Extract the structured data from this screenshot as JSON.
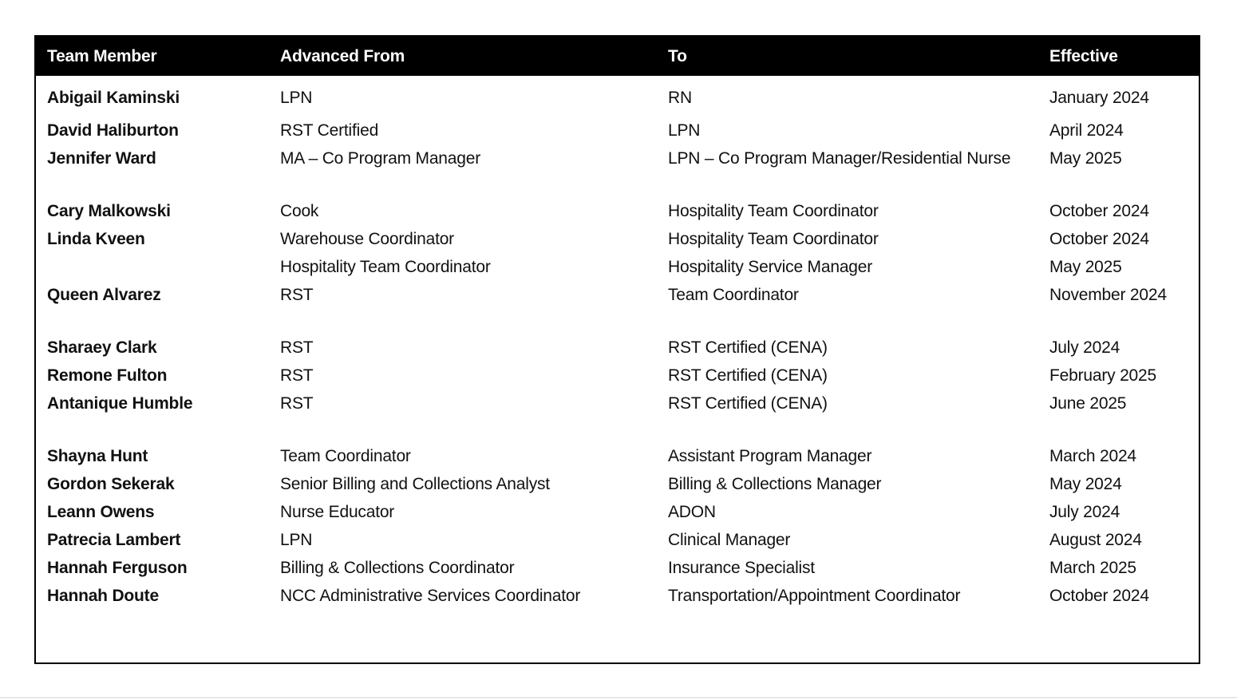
{
  "page": {
    "background_color": "#ffffff",
    "bottom_rule_color": "#e7e7e7"
  },
  "table": {
    "border_color": "#000000",
    "header": {
      "background_color": "#000000",
      "text_color": "#ffffff",
      "columns": [
        "Team Member",
        "Advanced From",
        "To",
        "Effective"
      ]
    },
    "body_text_color": "#111111",
    "rows": [
      {
        "member": "Abigail Kaminski",
        "from": "LPN",
        "to": "RN",
        "effective": "January 2024"
      },
      {
        "member": "David Haliburton",
        "from": "RST Certified",
        "to": "LPN",
        "effective": "April 2024"
      },
      {
        "member": "Jennifer Ward",
        "from": "MA – Co Program Manager",
        "to": "LPN – Co Program Manager/Residential Nurse",
        "effective": "May 2025"
      },
      {
        "spacer": true
      },
      {
        "member": "Cary Malkowski",
        "from": "Cook",
        "to": "Hospitality Team Coordinator",
        "effective": "October 2024"
      },
      {
        "member": "Linda Kveen",
        "from": "Warehouse Coordinator",
        "to": "Hospitality Team Coordinator",
        "effective": "October 2024"
      },
      {
        "member": "",
        "from": "Hospitality Team Coordinator",
        "to": "Hospitality Service Manager",
        "effective": "May 2025"
      },
      {
        "member": "Queen Alvarez",
        "from": "RST",
        "to": "Team Coordinator",
        "effective": "November 2024"
      },
      {
        "spacer": true
      },
      {
        "member": "Sharaey Clark",
        "from": "RST",
        "to": "RST Certified (CENA)",
        "effective": "July 2024"
      },
      {
        "member": "Remone Fulton",
        "from": "RST",
        "to": "RST Certified (CENA)",
        "effective": "February 2025"
      },
      {
        "member": "Antanique Humble",
        "from": "RST",
        "to": "RST Certified (CENA)",
        "effective": "June 2025"
      },
      {
        "spacer": true
      },
      {
        "member": "Shayna Hunt",
        "from": "Team Coordinator",
        "to": "Assistant Program Manager",
        "effective": "March 2024"
      },
      {
        "member": "Gordon Sekerak",
        "from": "Senior Billing and Collections Analyst",
        "to": "Billing & Collections Manager",
        "effective": "May 2024"
      },
      {
        "member": "Leann Owens",
        "from": "Nurse Educator",
        "to": "ADON",
        "effective": "July 2024"
      },
      {
        "member": "Patrecia Lambert",
        "from": "LPN",
        "to": "Clinical Manager",
        "effective": "August 2024"
      },
      {
        "member": "Hannah Ferguson",
        "from": "Billing & Collections Coordinator",
        "to": "Insurance Specialist",
        "effective": "March 2025"
      },
      {
        "member": "Hannah Doute",
        "from": "NCC Administrative Services Coordinator",
        "to": "Transportation/Appointment Coordinator",
        "effective": "October 2024"
      }
    ]
  }
}
